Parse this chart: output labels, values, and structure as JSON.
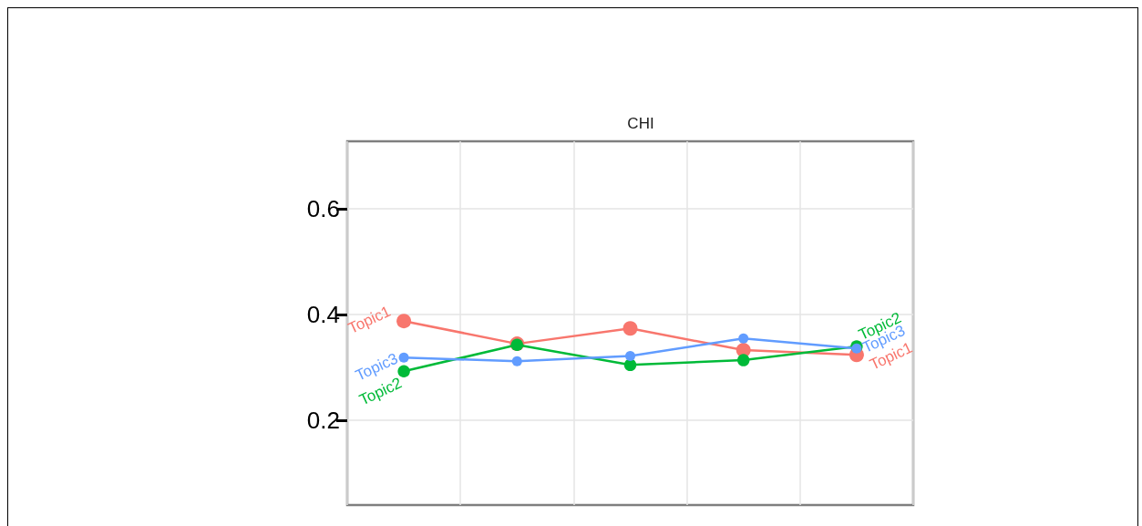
{
  "chart_data": {
    "type": "line",
    "title": "CHI",
    "categories": [
      null,
      null,
      null,
      null,
      null
    ],
    "series": [
      {
        "name": "Topic1",
        "color": "#f8766d",
        "values": [
          0.388,
          0.345,
          0.374,
          0.333,
          0.324
        ]
      },
      {
        "name": "Topic2",
        "color": "#00ba38",
        "values": [
          0.293,
          0.343,
          0.305,
          0.314,
          0.34
        ]
      },
      {
        "name": "Topic3",
        "color": "#619cff",
        "values": [
          0.319,
          0.312,
          0.322,
          0.355,
          0.336
        ]
      }
    ],
    "ylim": [
      0.04,
      0.728
    ],
    "yticks": [
      0.2,
      0.4,
      0.6
    ],
    "grid": true,
    "marker": "circle",
    "line_style": "solid",
    "tick_labels": "y"
  }
}
